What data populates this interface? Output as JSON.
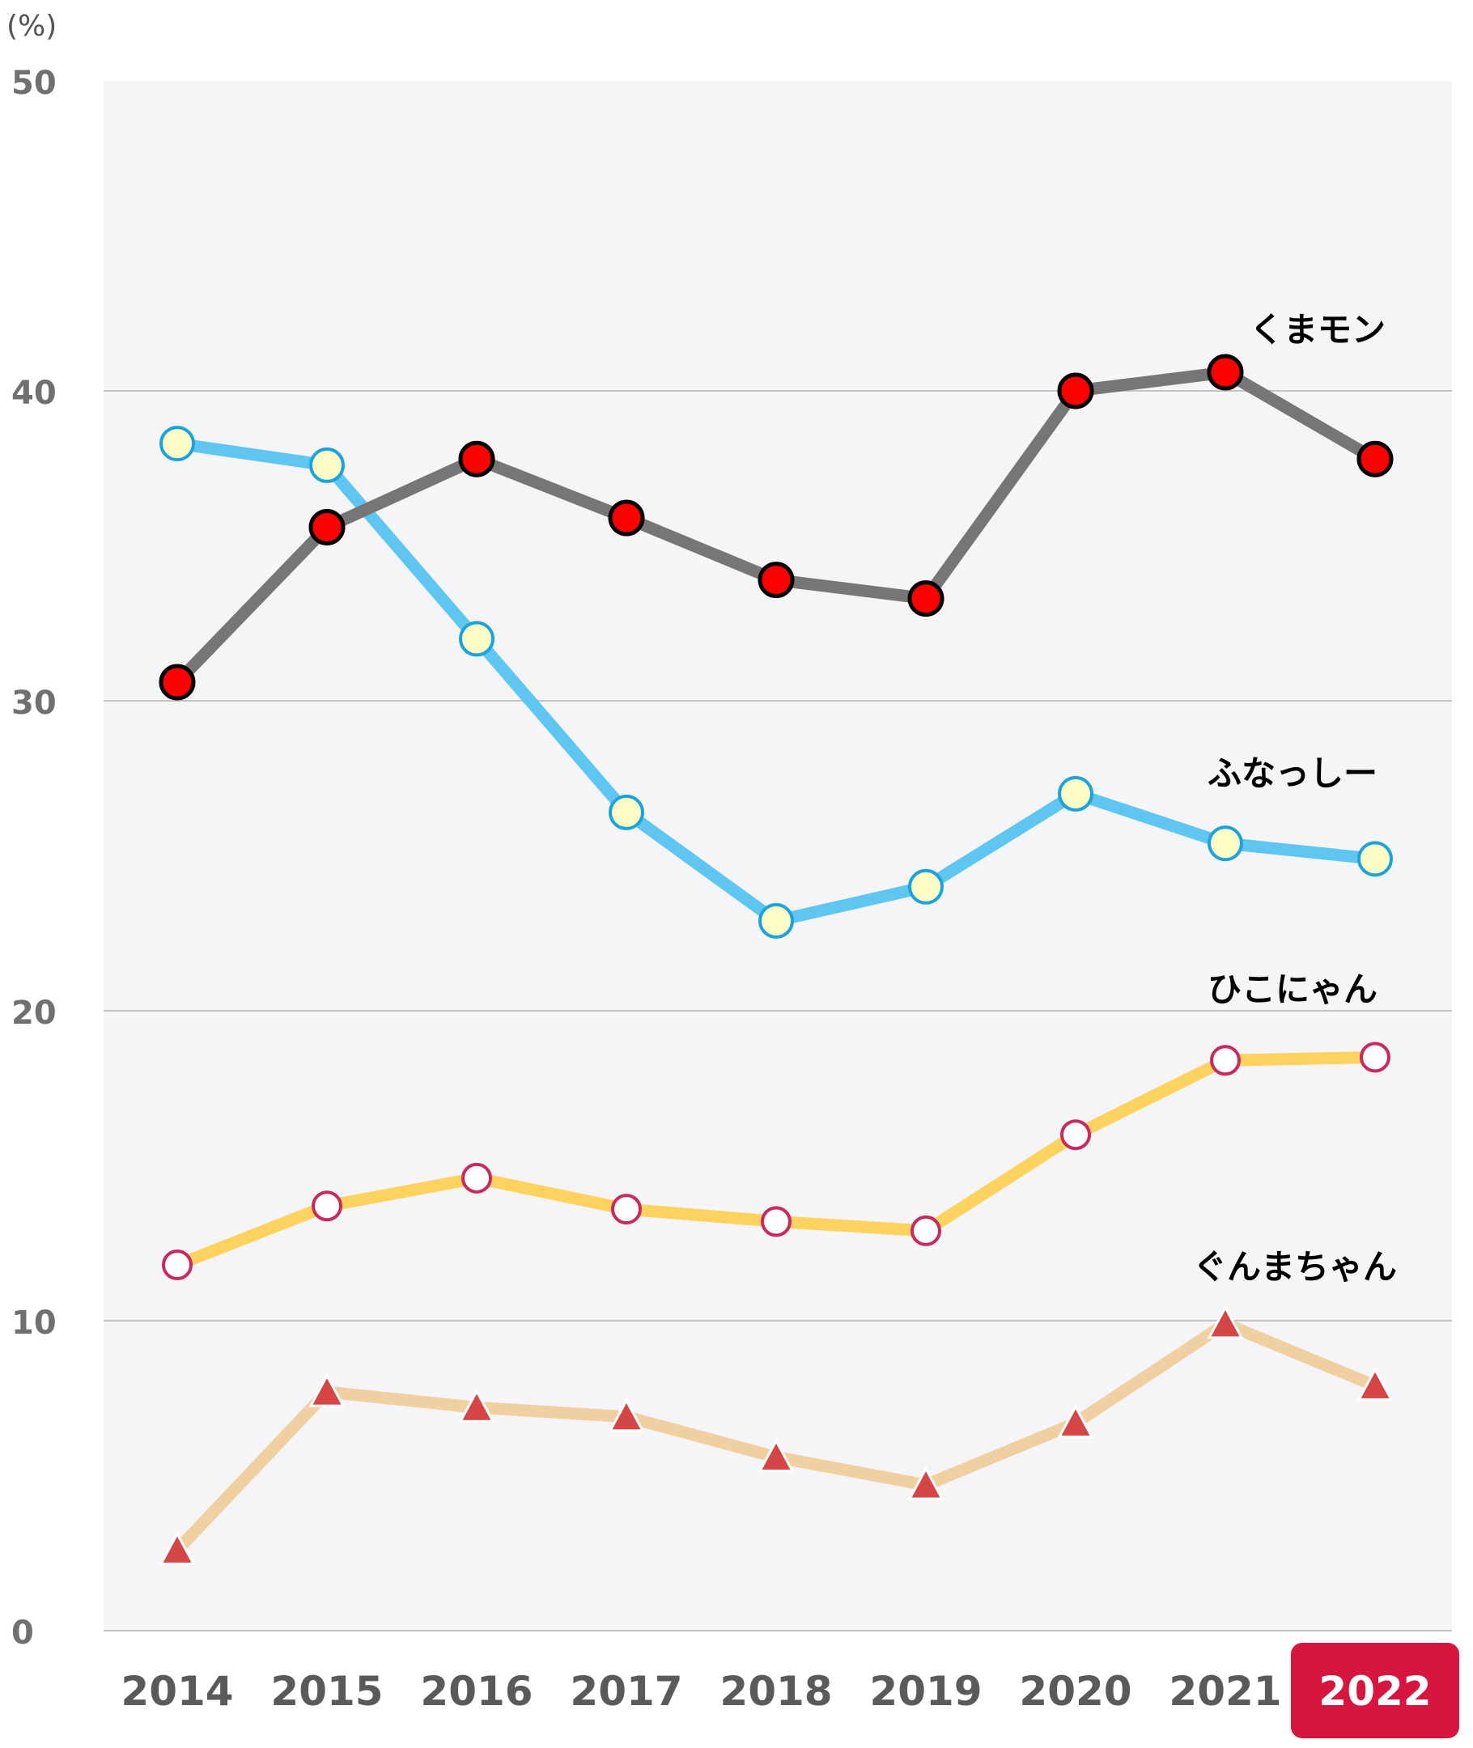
{
  "chart_data": {
    "type": "line",
    "y_unit": "(%)",
    "title": "",
    "xlabel": "",
    "ylabel": "",
    "ylim": [
      0,
      50
    ],
    "y_ticks": [
      0,
      10,
      20,
      30,
      40,
      50
    ],
    "categories": [
      "2014",
      "2015",
      "2016",
      "2017",
      "2018",
      "2019",
      "2020",
      "2021",
      "2022"
    ],
    "highlighted_category": "2022",
    "highlight_color": "#d7163f",
    "grid": true,
    "legend": "inline labels near last points",
    "series": [
      {
        "name": "くまモン",
        "values": [
          30.6,
          35.6,
          37.8,
          35.9,
          33.9,
          33.3,
          40.0,
          40.6,
          37.8
        ],
        "line_color": "#767676",
        "marker": "circle",
        "marker_fill": "#ff0000",
        "marker_stroke": "#000000"
      },
      {
        "name": "ふなっしー",
        "values": [
          38.3,
          37.6,
          32.0,
          26.4,
          22.9,
          24.0,
          27.0,
          25.4,
          24.9
        ],
        "line_color": "#5ec6f0",
        "marker": "circle",
        "marker_fill": "#fdfcc4",
        "marker_stroke": "#1aa3dd"
      },
      {
        "name": "ひこにゃん",
        "values": [
          11.8,
          13.7,
          14.6,
          13.6,
          13.2,
          12.9,
          16.0,
          18.4,
          18.5
        ],
        "line_color": "#fdd25f",
        "marker": "circle",
        "marker_fill": "#ffffff",
        "marker_stroke": "#c9295f"
      },
      {
        "name": "ぐんまちゃん",
        "values": [
          2.6,
          7.7,
          7.2,
          6.9,
          5.6,
          4.7,
          6.7,
          9.9,
          7.9
        ],
        "line_color": "#f0cfa0",
        "marker": "triangle",
        "marker_fill": "#d64545",
        "marker_stroke": "#ffffff"
      }
    ]
  }
}
